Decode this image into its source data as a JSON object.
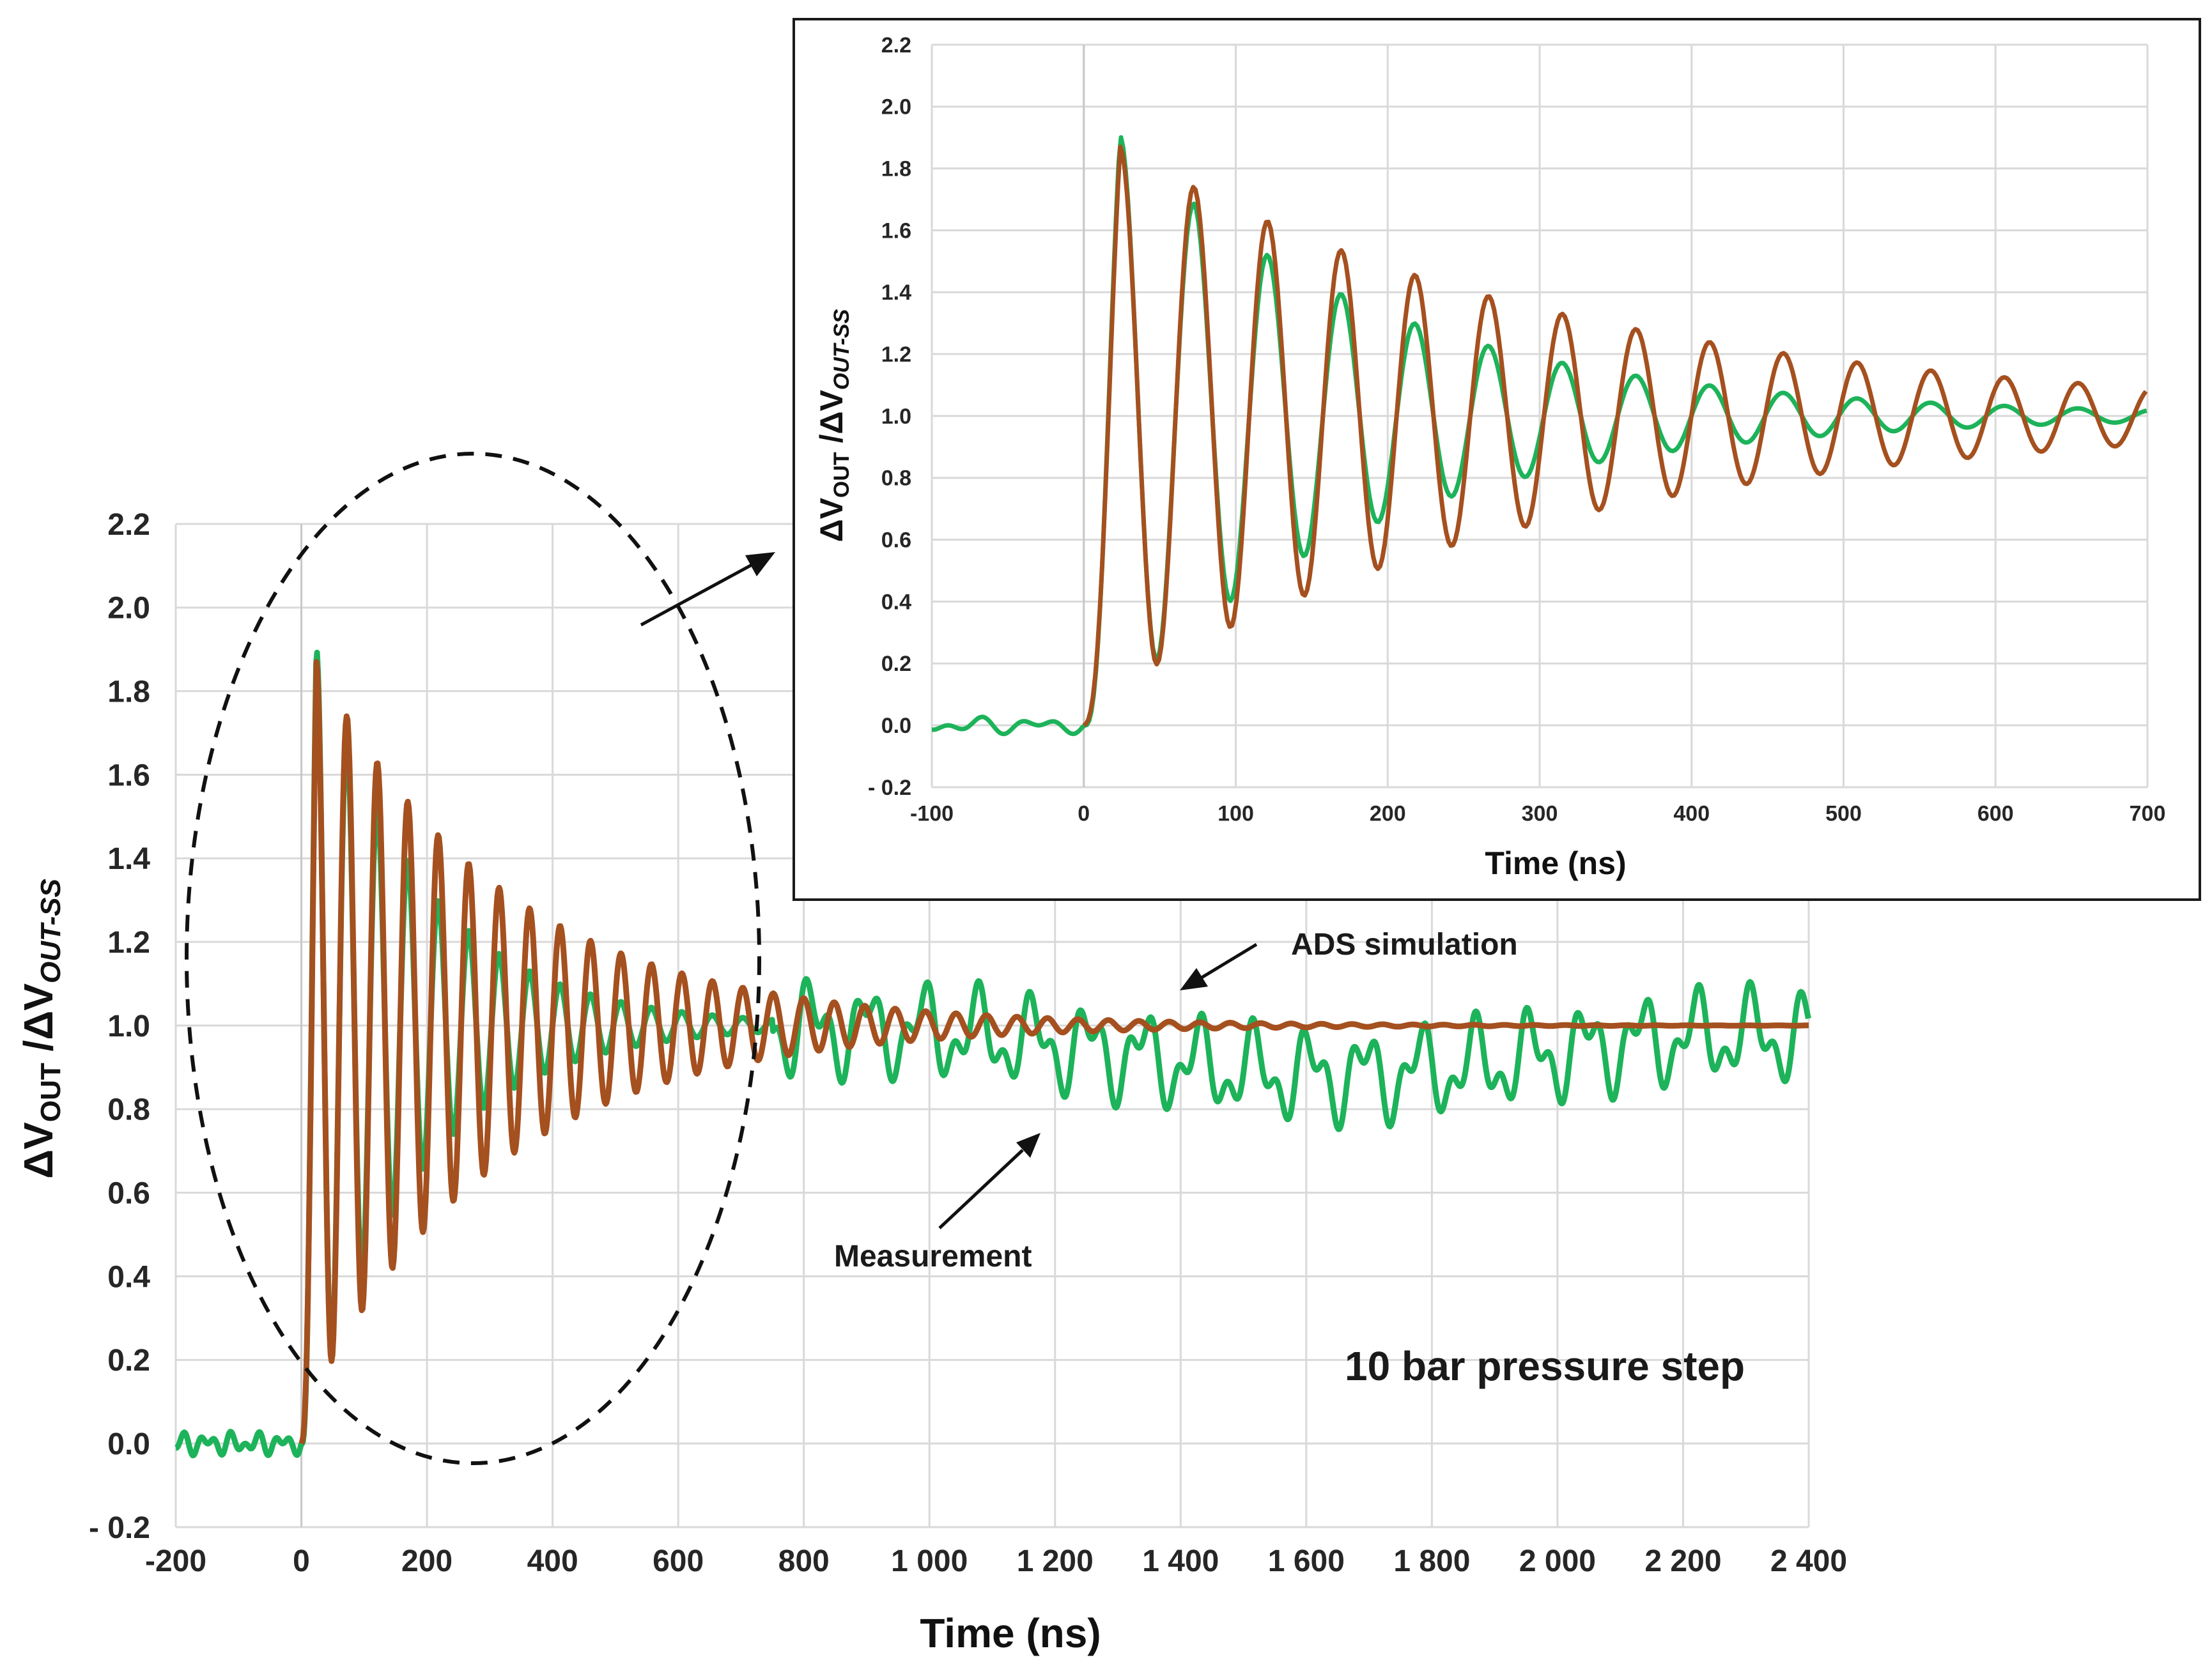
{
  "chart_data": [
    {
      "id": "main",
      "type": "line",
      "title": "",
      "annotation": "10 bar pressure step",
      "xlabel": "Time  (ns)",
      "ylabel": {
        "main": "ΔV",
        "sub1": "OUT",
        "sep": " /ΔV",
        "sub2": "OUT-SS"
      },
      "xlim": [
        -200,
        2400
      ],
      "ylim": [
        -0.2,
        2.2
      ],
      "x_ticks": [
        -200,
        0,
        200,
        400,
        600,
        800,
        1000,
        1200,
        1400,
        1600,
        1800,
        2000,
        2200,
        2400
      ],
      "x_tick_labels": [
        "-200",
        "0",
        "200",
        "400",
        "600",
        "800",
        "1 000",
        "1 200",
        "1 400",
        "1 600",
        "1 800",
        "2 000",
        "2 200",
        "2 400"
      ],
      "y_ticks": [
        -0.2,
        0.0,
        0.2,
        0.4,
        0.6,
        0.8,
        1.0,
        1.2,
        1.4,
        1.6,
        1.8,
        2.0,
        2.2
      ],
      "y_tick_labels": [
        "- 0.2",
        "0.0",
        "0.2",
        "0.4",
        "0.6",
        "0.8",
        "1.0",
        "1.2",
        "1.4",
        "1.6",
        "1.8",
        "2.0",
        "2.2"
      ],
      "grid": true,
      "series": [
        {
          "name": "Measurement",
          "color": "#1db35a",
          "model": {
            "t0": 0,
            "period_ns": 48.5,
            "first_peak": 1.905,
            "decay_ns": 175,
            "steady": 1.0,
            "noise_before_step": 0.03,
            "late_deviation": "drops to 0.7-1.02 with ripples after 750 ns"
          }
        },
        {
          "name": "ADS simulation",
          "color": "#a5501f",
          "model": {
            "t0": 0,
            "period_ns": 48.5,
            "first_peak": 1.87,
            "decay_ns": 300,
            "steady": 1.0
          }
        }
      ],
      "labels": [
        {
          "text": "ADS simulation",
          "points_to": [
            1430,
            1.08
          ]
        },
        {
          "text": "Measurement",
          "points_to": [
            1150,
            0.78
          ]
        }
      ],
      "highlight": {
        "shape": "dashed-ellipse",
        "x_range": [
          -190,
          740
        ],
        "y_range": [
          -0.2,
          2.17
        ]
      }
    },
    {
      "id": "inset",
      "type": "line",
      "title": "",
      "xlabel": "Time  (ns)",
      "ylabel": {
        "main": "ΔV",
        "sub1": "OUT",
        "sep": " /ΔV",
        "sub2": "OUT-SS"
      },
      "xlim": [
        -100,
        700
      ],
      "ylim": [
        -0.2,
        2.2
      ],
      "x_ticks": [
        -100,
        0,
        100,
        200,
        300,
        400,
        500,
        600,
        700
      ],
      "x_tick_labels": [
        "-100",
        "0",
        "100",
        "200",
        "300",
        "400",
        "500",
        "600",
        "700"
      ],
      "y_ticks": [
        -0.2,
        0.0,
        0.2,
        0.4,
        0.6,
        0.8,
        1.0,
        1.2,
        1.4,
        1.6,
        1.8,
        2.0,
        2.2
      ],
      "y_tick_labels": [
        "- 0.2",
        "0.0",
        "0.2",
        "0.4",
        "0.6",
        "0.8",
        "1.0",
        "1.2",
        "1.4",
        "1.6",
        "1.8",
        "2.0",
        "2.2"
      ],
      "grid": true,
      "series": [
        {
          "name": "Measurement",
          "color": "#1db35a"
        },
        {
          "name": "ADS simulation",
          "color": "#a5501f"
        }
      ]
    }
  ],
  "colors": {
    "measurement": "#1db35a",
    "simulation": "#a5501f",
    "grid": "#d9d9d9",
    "frame": "#1a1a1a"
  }
}
